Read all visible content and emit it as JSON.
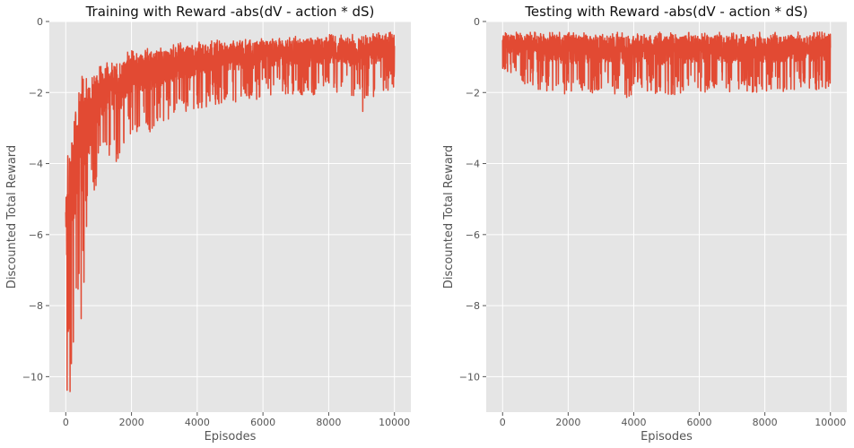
{
  "chart_data": [
    {
      "type": "line",
      "title": "Training with Reward -abs(dV - action * dS)",
      "xlabel": "Episodes",
      "ylabel": "Discounted Total Reward",
      "xlim": [
        -500,
        10500
      ],
      "ylim": [
        -11,
        0
      ],
      "xticks": [
        0,
        2000,
        4000,
        6000,
        8000,
        10000
      ],
      "yticks": [
        -10,
        -8,
        -6,
        -4,
        -2,
        0
      ],
      "grid": true,
      "series": [
        {
          "color": "#e24a33",
          "x": [
            0,
            100,
            200,
            300,
            400,
            500,
            600,
            700,
            800,
            900,
            1000,
            1200,
            1400,
            1600,
            1800,
            2000,
            2200,
            2400,
            2600,
            2800,
            3000,
            3400,
            3800,
            4200,
            4600,
            5000,
            5500,
            6000,
            6500,
            7000,
            7500,
            8000,
            8500,
            9000,
            9500,
            10000
          ],
          "y_upper": [
            -3.3,
            -3.2,
            -2.8,
            -2.2,
            -2.0,
            -1.5,
            -1.6,
            -1.6,
            -1.4,
            -1.5,
            -1.3,
            -1.1,
            -1.0,
            -1.0,
            -0.9,
            -0.8,
            -0.8,
            -0.8,
            -0.7,
            -0.7,
            -0.7,
            -0.6,
            -0.6,
            -0.55,
            -0.5,
            -0.5,
            -0.5,
            -0.45,
            -0.45,
            -0.4,
            -0.4,
            -0.35,
            -0.35,
            -0.35,
            -0.3,
            -0.3
          ],
          "y_lower": [
            -10.7,
            -10.8,
            -10.3,
            -9.2,
            -9.6,
            -8.2,
            -7.0,
            -6.0,
            -5.6,
            -4.7,
            -4.6,
            -4.0,
            -4.0,
            -4.2,
            -3.6,
            -3.2,
            -3.1,
            -3.2,
            -3.1,
            -3.0,
            -2.8,
            -2.7,
            -2.6,
            -2.4,
            -2.4,
            -2.3,
            -2.2,
            -2.2,
            -2.1,
            -2.1,
            -2.2,
            -2.0,
            -2.0,
            -2.6,
            -2.0,
            -1.9
          ]
        }
      ]
    },
    {
      "type": "line",
      "title": "Testing with Reward -abs(dV - action * dS)",
      "xlabel": "Episodes",
      "ylabel": "Discounted Total Reward",
      "xlim": [
        -500,
        10500
      ],
      "ylim": [
        -11,
        0
      ],
      "xticks": [
        0,
        2000,
        4000,
        6000,
        8000,
        10000
      ],
      "yticks": [
        -10,
        -8,
        -6,
        -4,
        -2,
        0
      ],
      "grid": true,
      "series": [
        {
          "color": "#e24a33",
          "x": [
            0,
            1000,
            2000,
            3000,
            4000,
            5000,
            6000,
            7000,
            8000,
            9000,
            10000
          ],
          "y_upper": [
            -0.3,
            -0.3,
            -0.3,
            -0.3,
            -0.3,
            -0.3,
            -0.3,
            -0.3,
            -0.3,
            -0.3,
            -0.3
          ],
          "y_lower": [
            -1.5,
            -1.9,
            -2.1,
            -2.0,
            -2.2,
            -2.1,
            -2.0,
            -2.0,
            -2.0,
            -2.0,
            -1.9
          ]
        }
      ]
    }
  ]
}
